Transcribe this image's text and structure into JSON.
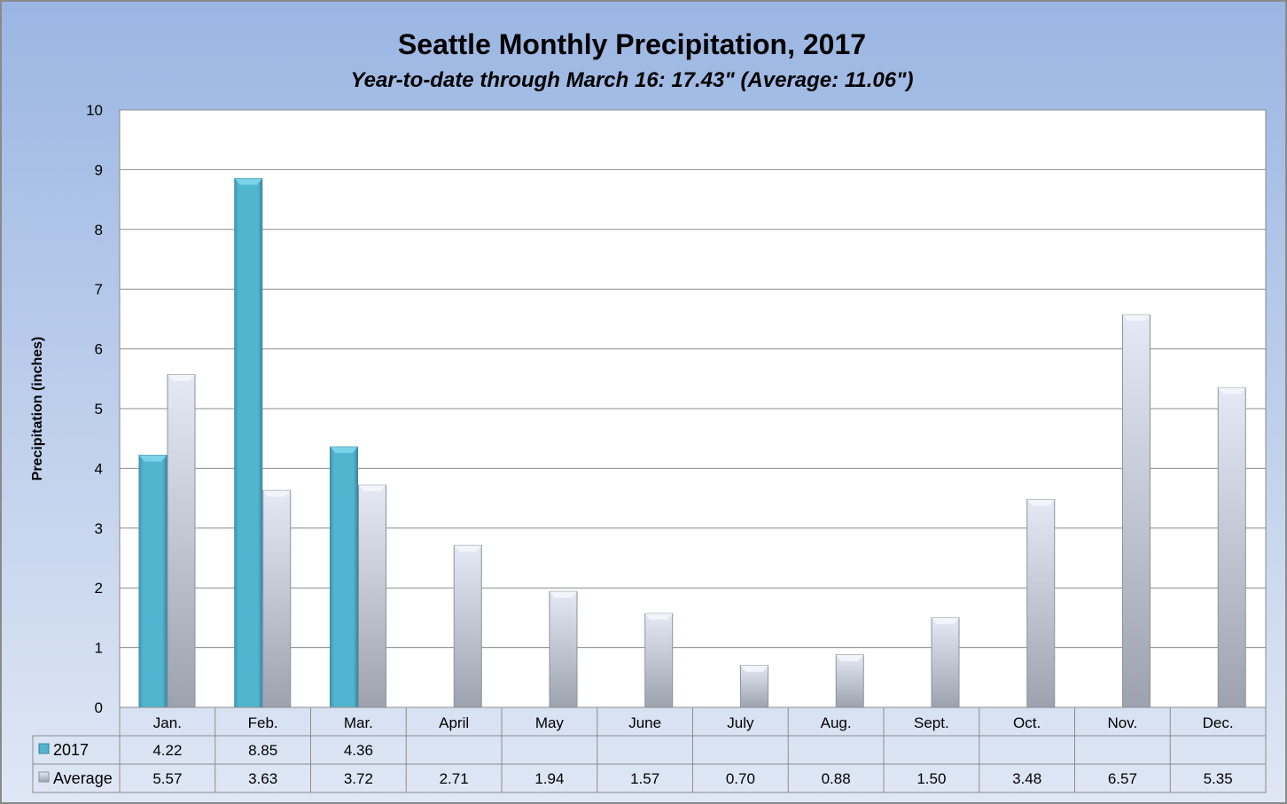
{
  "chart_data": {
    "type": "bar",
    "title": "Seattle Monthly Precipitation, 2017",
    "subtitle": "Year-to-date through March 16: 17.43\" (Average: 11.06\")",
    "xlabel": "",
    "ylabel": "Precipitation (inches)",
    "ylim": [
      0,
      10
    ],
    "yticks": [
      "0",
      "1",
      "2",
      "3",
      "4",
      "5",
      "6",
      "7",
      "8",
      "9",
      "10"
    ],
    "grid": true,
    "legend": "data-table",
    "categories": [
      "Jan.",
      "Feb.",
      "Mar.",
      "April",
      "May",
      "June",
      "July",
      "Aug.",
      "Sept.",
      "Oct.",
      "Nov.",
      "Dec."
    ],
    "series": [
      {
        "name": "2017",
        "color": "#4bacc6",
        "values": [
          4.22,
          8.85,
          4.36,
          null,
          null,
          null,
          null,
          null,
          null,
          null,
          null,
          null
        ],
        "labels": [
          "4.22",
          "8.85",
          "4.36",
          "",
          "",
          "",
          "",
          "",
          "",
          "",
          "",
          ""
        ]
      },
      {
        "name": "Average",
        "color": "#c6cbd9",
        "values": [
          5.57,
          3.63,
          3.72,
          2.71,
          1.94,
          1.57,
          0.7,
          0.88,
          1.5,
          3.48,
          6.57,
          5.35
        ],
        "labels": [
          "5.57",
          "3.63",
          "3.72",
          "2.71",
          "1.94",
          "1.57",
          "0.70",
          "0.88",
          "1.50",
          "3.48",
          "6.57",
          "5.35"
        ]
      }
    ]
  }
}
